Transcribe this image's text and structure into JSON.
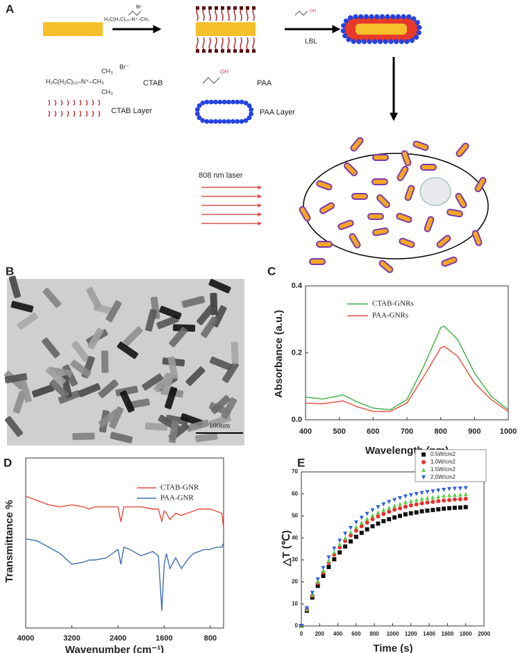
{
  "panels": {
    "labels": [
      "A",
      "B",
      "C",
      "D",
      "E"
    ]
  },
  "scheme": {
    "ctab_formula": "H₃C(H₂C)₁₅–N⁺–CH₃",
    "methyl": "CH₃",
    "bromide": "Br⁻",
    "ctab": "CTAB",
    "ctab_layer": "CTAB Layer",
    "paa": "PAA",
    "paa_layer": "PAA Layer",
    "acid": "OH",
    "lbl": "LBL",
    "laser": "808 nm laser"
  },
  "tem": {
    "scale_label": "100nm"
  },
  "chart_data": [
    {
      "type": "line",
      "xlabel": "Wavelength (nm)",
      "ylabel": "Absorbance (a.u.)",
      "x": [
        400,
        450,
        500,
        510,
        550,
        600,
        650,
        700,
        750,
        800,
        810,
        850,
        900,
        950,
        1000
      ],
      "series": [
        {
          "name": "CTAB-GNRs",
          "color": "#3cb043",
          "values": [
            0.068,
            0.062,
            0.072,
            0.075,
            0.055,
            0.035,
            0.03,
            0.06,
            0.16,
            0.275,
            0.28,
            0.24,
            0.14,
            0.07,
            0.03
          ]
        },
        {
          "name": "PAA-GNRs",
          "color": "#e8493a",
          "values": [
            0.05,
            0.048,
            0.055,
            0.057,
            0.04,
            0.025,
            0.025,
            0.05,
            0.13,
            0.215,
            0.22,
            0.19,
            0.11,
            0.06,
            0.025
          ]
        }
      ],
      "xlim": [
        400,
        1000
      ],
      "xticks": [
        400,
        500,
        600,
        700,
        800,
        900,
        1000
      ],
      "ylim": [
        0,
        0.4
      ],
      "yticks": [
        {
          "value": 0,
          "label": "0.0"
        },
        0.2,
        0.4
      ]
    },
    {
      "type": "line",
      "xlabel": "Wavenumber (cm⁻¹)",
      "ylabel": "Transmittance %",
      "x": [
        4000,
        3800,
        3600,
        3400,
        3200,
        3000,
        2900,
        2800,
        2600,
        2400,
        2350,
        2300,
        2200,
        2000,
        1800,
        1700,
        1640,
        1600,
        1560,
        1500,
        1400,
        1300,
        1200,
        1100,
        1000,
        900,
        800,
        700,
        600,
        570
      ],
      "series": [
        {
          "name": "CTAB-GNR",
          "color": "#e8493a",
          "values": [
            62,
            60,
            58,
            57,
            58,
            57,
            56,
            57,
            57,
            57,
            50,
            57,
            57,
            57,
            56,
            56,
            50,
            55,
            54,
            51,
            54,
            53,
            54,
            55,
            56,
            56,
            56,
            55,
            54,
            47
          ]
        },
        {
          "name": "PAA-GNR",
          "color": "#3d6fb0",
          "values": [
            42,
            41,
            38,
            35,
            30,
            31,
            32,
            32,
            33,
            37,
            30,
            38,
            37,
            34,
            36,
            34,
            8,
            30,
            35,
            28,
            33,
            28,
            32,
            35,
            36,
            37,
            37,
            38,
            38,
            40
          ]
        }
      ],
      "xlim": [
        4000,
        570
      ],
      "xticks": [
        4000,
        3200,
        2400,
        1600,
        800
      ],
      "ylim": [
        0,
        80
      ]
    },
    {
      "type": "scatter",
      "xlabel": "Time (s)",
      "ylabel": "△T (℃)",
      "x": [
        0,
        60,
        120,
        180,
        240,
        300,
        360,
        420,
        480,
        540,
        600,
        660,
        720,
        780,
        840,
        900,
        960,
        1020,
        1080,
        1140,
        1200,
        1260,
        1320,
        1380,
        1440,
        1500,
        1560,
        1620,
        1680,
        1740,
        1800
      ],
      "series": [
        {
          "name": "0.5W/cm2",
          "color": "#111111",
          "marker": "square",
          "values": [
            0,
            6.9,
            12.9,
            18.2,
            22.7,
            26.8,
            30.3,
            33.4,
            36.1,
            38.4,
            40.5,
            42.3,
            43.9,
            45.3,
            46.5,
            47.6,
            48.5,
            49.3,
            50.0,
            50.7,
            51.2,
            51.6,
            52.1,
            52.4,
            52.7,
            53.0,
            53.3,
            53.5,
            53.7,
            53.8,
            54.0
          ]
        },
        {
          "name": "1.0W/cm2",
          "color": "#e8302a",
          "marker": "circle",
          "values": [
            0,
            7.4,
            13.8,
            19.5,
            24.3,
            28.7,
            32.4,
            35.7,
            38.6,
            41.1,
            43.3,
            45.3,
            47.0,
            48.5,
            49.8,
            50.9,
            51.9,
            52.8,
            53.5,
            54.2,
            54.8,
            55.2,
            55.7,
            56.1,
            56.4,
            56.7,
            57.0,
            57.2,
            57.5,
            57.6,
            57.8
          ]
        },
        {
          "name": "1.5W/cm2",
          "color": "#5ad14a",
          "marker": "triangle-up",
          "values": [
            0,
            7.7,
            14.3,
            20.2,
            25.2,
            29.7,
            33.6,
            37.1,
            40.1,
            42.6,
            45.0,
            47.0,
            48.7,
            50.3,
            51.6,
            52.8,
            53.8,
            54.7,
            55.5,
            56.3,
            56.8,
            57.3,
            57.8,
            58.2,
            58.5,
            58.8,
            59.2,
            59.4,
            59.6,
            59.7,
            59.9
          ]
        },
        {
          "name": "2.0W/cm2",
          "color": "#2f5fe0",
          "marker": "triangle-down",
          "values": [
            0,
            8.0,
            15.0,
            21.1,
            26.3,
            31.1,
            35.1,
            38.7,
            41.9,
            44.5,
            47.0,
            49.1,
            50.9,
            52.5,
            53.9,
            55.2,
            56.3,
            57.2,
            58.0,
            58.8,
            59.4,
            59.9,
            60.4,
            60.8,
            61.1,
            61.5,
            61.8,
            62.1,
            62.3,
            62.4,
            62.6
          ]
        }
      ],
      "xlim": [
        0,
        2000
      ],
      "xticks": [
        0,
        200,
        400,
        600,
        800,
        1000,
        1200,
        1400,
        1600,
        1800,
        2000
      ],
      "ylim": [
        0,
        70
      ],
      "yticks": [
        0,
        10,
        20,
        30,
        40,
        50,
        60,
        70
      ]
    }
  ]
}
